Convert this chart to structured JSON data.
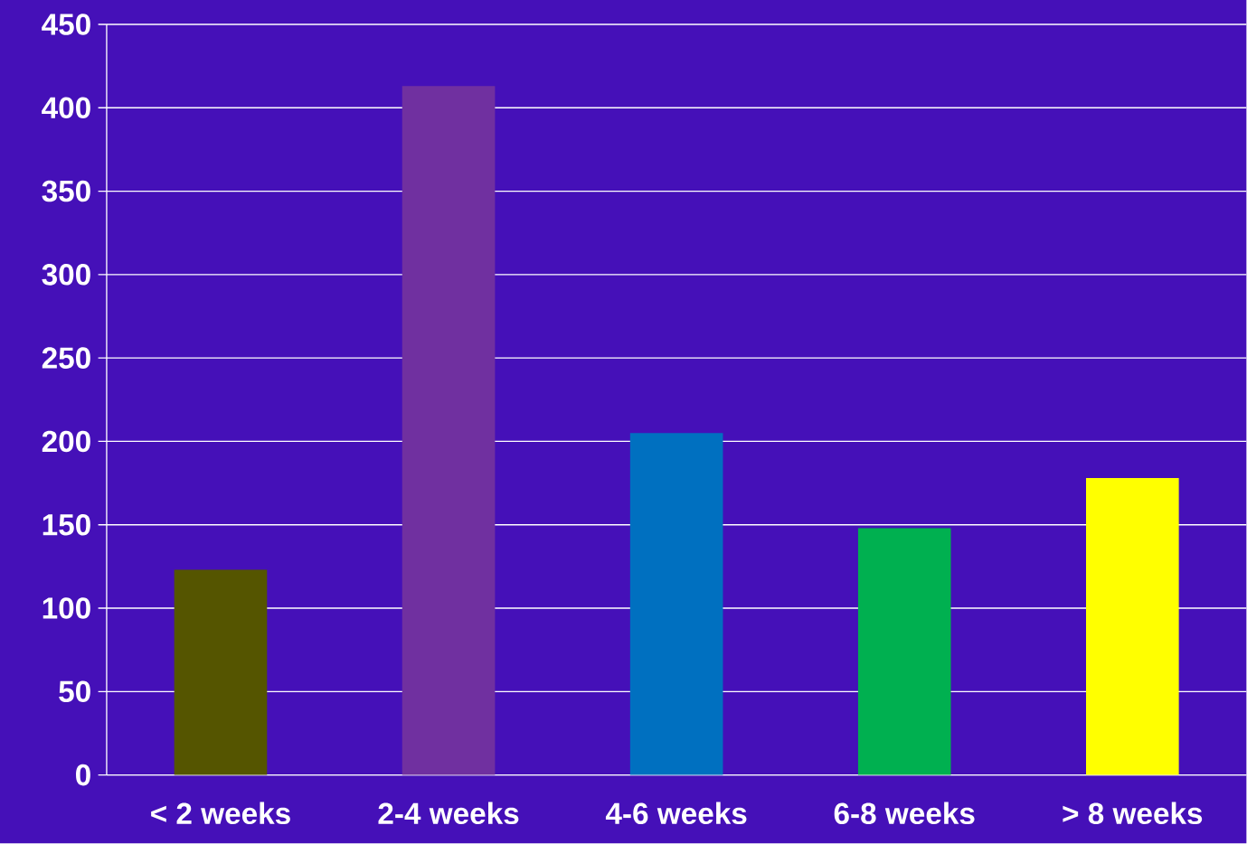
{
  "chart_data": {
    "type": "bar",
    "categories": [
      "< 2 weeks",
      "2-4 weeks",
      "4-6 weeks",
      "6-8 weeks",
      "> 8 weeks"
    ],
    "values": [
      123,
      413,
      205,
      148,
      178
    ],
    "colors": [
      "#555500",
      "#7030a0",
      "#0070c0",
      "#00b050",
      "#ffff00"
    ],
    "ylim": [
      0,
      450
    ],
    "yticks": [
      0,
      50,
      100,
      150,
      200,
      250,
      300,
      350,
      400,
      450
    ],
    "grid": "y"
  }
}
